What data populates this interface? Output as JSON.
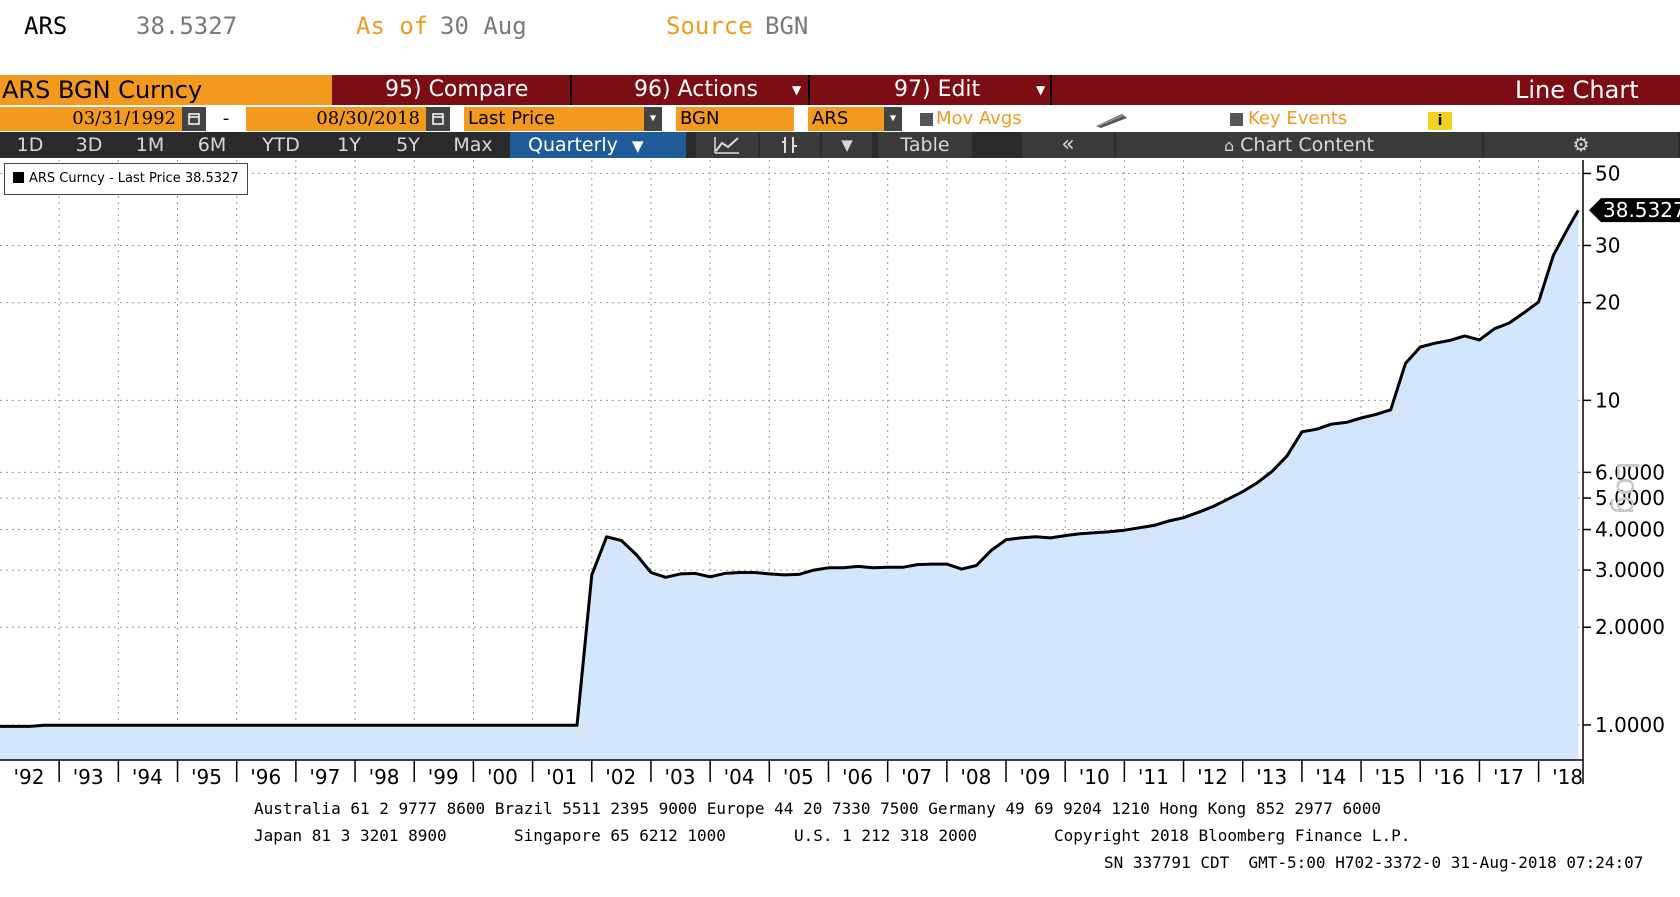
{
  "header": {
    "ticker": "ARS",
    "price": "38.5327",
    "as_of_label": "As of",
    "as_of_date": "30 Aug",
    "source_label": "Source",
    "source_value": "BGN"
  },
  "toolbar": {
    "security": "ARS BGN Curncy",
    "compare": "95) Compare",
    "actions": "96) Actions",
    "edit": "97) Edit",
    "chart_type": "Line Chart"
  },
  "params": {
    "start_date": "03/31/1992",
    "dash": "-",
    "end_date": "08/30/2018",
    "field": "Last Price",
    "source": "BGN",
    "currency": "ARS",
    "mov_avgs": "Mov Avgs",
    "key_events": "Key Events",
    "info_icon": "i"
  },
  "ranges": {
    "items": [
      "1D",
      "3D",
      "1M",
      "6M",
      "YTD",
      "1Y",
      "5Y",
      "Max"
    ],
    "frequency": "Quarterly",
    "table": "Table",
    "chart_content": "Chart Content"
  },
  "legend": {
    "text": "ARS Curncy - Last Price 38.5327"
  },
  "colors": {
    "line": "#000000",
    "area": "#d3e6fb",
    "brand_bar": "#7d0d15",
    "field": "#f39a1e",
    "selected_tab": "#1f5a99"
  },
  "chart_data": {
    "type": "area",
    "scale": "log",
    "ylim": [
      0.78,
      55
    ],
    "y_ticks": [
      {
        "v": 50,
        "label": "50"
      },
      {
        "v": 30,
        "label": "30"
      },
      {
        "v": 20,
        "label": "20"
      },
      {
        "v": 10,
        "label": "10"
      },
      {
        "v": 6,
        "label": "6.0000"
      },
      {
        "v": 5,
        "label": "5.0000"
      },
      {
        "v": 4,
        "label": "4.0000"
      },
      {
        "v": 3,
        "label": "3.0000"
      },
      {
        "v": 2,
        "label": "2.0000"
      },
      {
        "v": 1,
        "label": "1.0000"
      }
    ],
    "y_axis_label": "Log",
    "x_labels": [
      "'92",
      "'93",
      "'94",
      "'95",
      "'96",
      "'97",
      "'98",
      "'99",
      "'00",
      "'01",
      "'02",
      "'03",
      "'04",
      "'05",
      "'06",
      "'07",
      "'08",
      "'09",
      "'10",
      "'11",
      "'12",
      "'13",
      "'14",
      "'15",
      "'16",
      "'17",
      "'18"
    ],
    "xlim": [
      1992.0,
      2018.75
    ],
    "last_value_label": "38.5327",
    "series": [
      {
        "points": [
          [
            1992.0,
            0.99
          ],
          [
            1992.5,
            0.99
          ],
          [
            1992.75,
            0.998
          ],
          [
            1993.0,
            0.998
          ],
          [
            1994.0,
            0.998
          ],
          [
            1995.0,
            0.998
          ],
          [
            1996.0,
            0.998
          ],
          [
            1997.0,
            0.998
          ],
          [
            1998.0,
            0.998
          ],
          [
            1999.0,
            0.998
          ],
          [
            2000.0,
            0.998
          ],
          [
            2001.0,
            0.998
          ],
          [
            2001.75,
            0.998
          ],
          [
            2002.0,
            2.9
          ],
          [
            2002.25,
            3.8
          ],
          [
            2002.5,
            3.7
          ],
          [
            2002.75,
            3.35
          ],
          [
            2003.0,
            2.95
          ],
          [
            2003.25,
            2.85
          ],
          [
            2003.5,
            2.92
          ],
          [
            2003.75,
            2.93
          ],
          [
            2004.0,
            2.86
          ],
          [
            2004.25,
            2.93
          ],
          [
            2004.5,
            2.95
          ],
          [
            2004.75,
            2.95
          ],
          [
            2005.0,
            2.92
          ],
          [
            2005.25,
            2.9
          ],
          [
            2005.5,
            2.91
          ],
          [
            2005.75,
            3.0
          ],
          [
            2006.0,
            3.05
          ],
          [
            2006.25,
            3.05
          ],
          [
            2006.5,
            3.08
          ],
          [
            2006.75,
            3.05
          ],
          [
            2007.0,
            3.06
          ],
          [
            2007.25,
            3.06
          ],
          [
            2007.5,
            3.12
          ],
          [
            2007.75,
            3.13
          ],
          [
            2008.0,
            3.13
          ],
          [
            2008.25,
            3.02
          ],
          [
            2008.5,
            3.1
          ],
          [
            2008.75,
            3.45
          ],
          [
            2009.0,
            3.72
          ],
          [
            2009.25,
            3.77
          ],
          [
            2009.5,
            3.8
          ],
          [
            2009.75,
            3.77
          ],
          [
            2010.0,
            3.83
          ],
          [
            2010.25,
            3.88
          ],
          [
            2010.5,
            3.91
          ],
          [
            2010.75,
            3.94
          ],
          [
            2011.0,
            3.98
          ],
          [
            2011.25,
            4.05
          ],
          [
            2011.5,
            4.12
          ],
          [
            2011.75,
            4.25
          ],
          [
            2012.0,
            4.35
          ],
          [
            2012.25,
            4.52
          ],
          [
            2012.5,
            4.71
          ],
          [
            2012.75,
            4.96
          ],
          [
            2013.0,
            5.23
          ],
          [
            2013.25,
            5.58
          ],
          [
            2013.5,
            6.05
          ],
          [
            2013.75,
            6.75
          ],
          [
            2014.0,
            8.0
          ],
          [
            2014.25,
            8.15
          ],
          [
            2014.5,
            8.45
          ],
          [
            2014.75,
            8.55
          ],
          [
            2015.0,
            8.82
          ],
          [
            2015.25,
            9.05
          ],
          [
            2015.5,
            9.35
          ],
          [
            2015.75,
            13.0
          ],
          [
            2016.0,
            14.6
          ],
          [
            2016.25,
            15.0
          ],
          [
            2016.5,
            15.3
          ],
          [
            2016.75,
            15.8
          ],
          [
            2017.0,
            15.35
          ],
          [
            2017.25,
            16.6
          ],
          [
            2017.5,
            17.3
          ],
          [
            2017.75,
            18.6
          ],
          [
            2018.0,
            20.1
          ],
          [
            2018.25,
            28.0
          ],
          [
            2018.5,
            34.0
          ],
          [
            2018.67,
            38.5327
          ]
        ]
      }
    ]
  },
  "footer": {
    "line1": "Australia 61 2 9777 8600 Brazil 5511 2395 9000 Europe 44 20 7330 7500 Germany 49 69 9204 1210 Hong Kong 852 2977 6000",
    "line2a": "Japan 81 3 3201 8900",
    "line2b": "Singapore 65 6212 1000",
    "line2c": "U.S. 1 212 318 2000",
    "line2d": "Copyright 2018 Bloomberg Finance L.P.",
    "line3": "SN 337791 CDT  GMT-5:00 H702-3372-0 31-Aug-2018 07:24:07"
  }
}
